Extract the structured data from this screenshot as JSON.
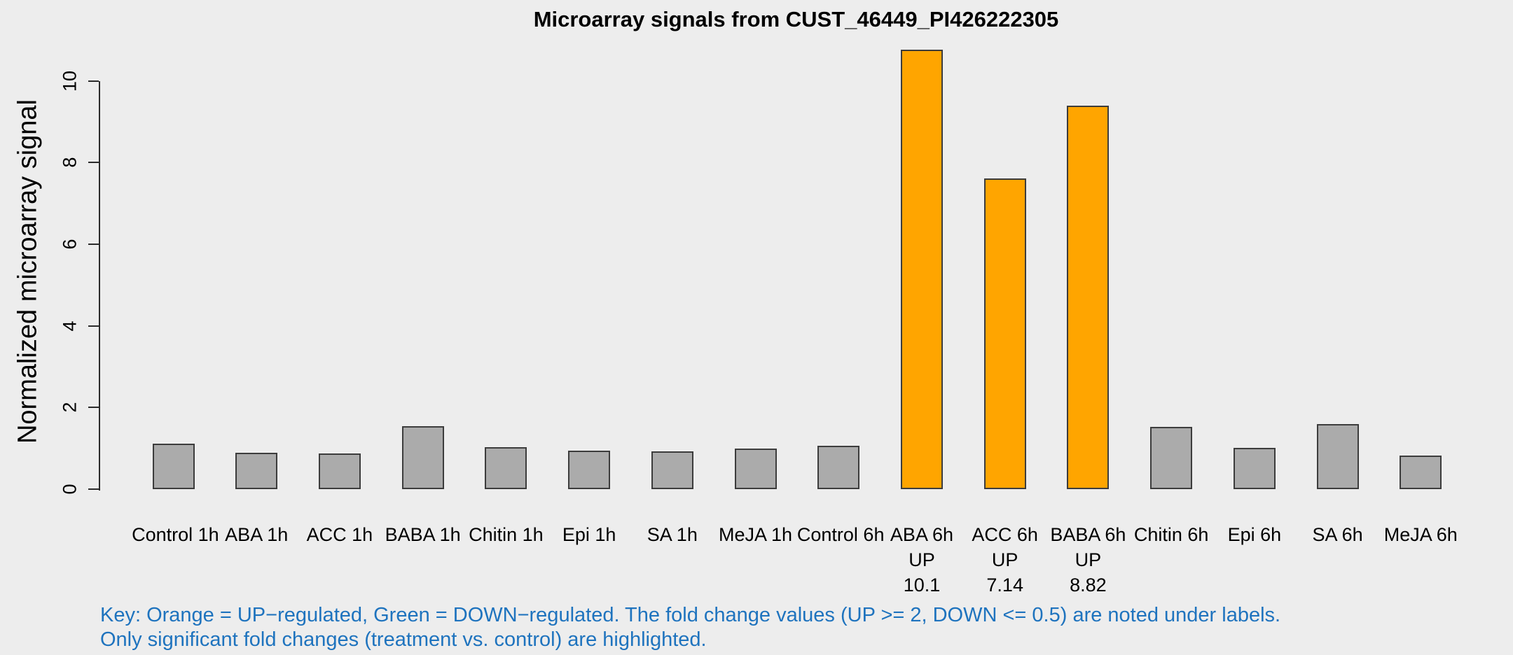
{
  "title": "Microarray signals from CUST_46449_PI426222305",
  "y_axis_title": "Normalized microarray signal",
  "key": {
    "line1": "Key: Orange = UP−regulated, Green = DOWN−regulated. The fold change values (UP >= 2, DOWN <= 0.5) are noted under labels.",
    "line2": "Only significant fold changes (treatment vs. control) are highlighted."
  },
  "colors": {
    "up_bar": "#FFA500",
    "neutral_bar": "#ABABAB",
    "bar_border": "#3C3C3C",
    "axis": "#2B2B2B",
    "key_text": "#1E73BE",
    "background": "#EDEDED",
    "text": "#000000"
  },
  "chart_data": {
    "type": "bar",
    "title": "Microarray signals from CUST_46449_PI426222305",
    "xlabel": "",
    "ylabel": "Normalized microarray signal",
    "ylim": [
      0,
      10
    ],
    "yticks": [
      0,
      2,
      4,
      6,
      8,
      10
    ],
    "grid": false,
    "legend": "none",
    "bar_color_legend": {
      "orange": "UP-regulated (significant)",
      "gray": "not significant"
    },
    "bars": [
      {
        "label": "Control 1h",
        "value": 1.11,
        "color": "gray"
      },
      {
        "label": "ABA 1h",
        "value": 0.89,
        "color": "gray"
      },
      {
        "label": "ACC 1h",
        "value": 0.87,
        "color": "gray"
      },
      {
        "label": "BABA 1h",
        "value": 1.55,
        "color": "gray"
      },
      {
        "label": "Chitin 1h",
        "value": 1.03,
        "color": "gray"
      },
      {
        "label": "Epi 1h",
        "value": 0.94,
        "color": "gray"
      },
      {
        "label": "SA 1h",
        "value": 0.93,
        "color": "gray"
      },
      {
        "label": "MeJA 1h",
        "value": 0.99,
        "color": "gray"
      },
      {
        "label": "Control 6h",
        "value": 1.07,
        "color": "gray"
      },
      {
        "label": "ABA 6h",
        "value": 10.77,
        "color": "orange",
        "regulation": "UP",
        "fold_change": "10.1"
      },
      {
        "label": "ACC 6h",
        "value": 7.61,
        "color": "orange",
        "regulation": "UP",
        "fold_change": "7.14"
      },
      {
        "label": "BABA 6h",
        "value": 9.4,
        "color": "orange",
        "regulation": "UP",
        "fold_change": "8.82"
      },
      {
        "label": "Chitin 6h",
        "value": 1.53,
        "color": "gray"
      },
      {
        "label": "Epi 6h",
        "value": 1.01,
        "color": "gray"
      },
      {
        "label": "SA 6h",
        "value": 1.59,
        "color": "gray"
      },
      {
        "label": "MeJA 6h",
        "value": 0.83,
        "color": "gray"
      }
    ]
  }
}
